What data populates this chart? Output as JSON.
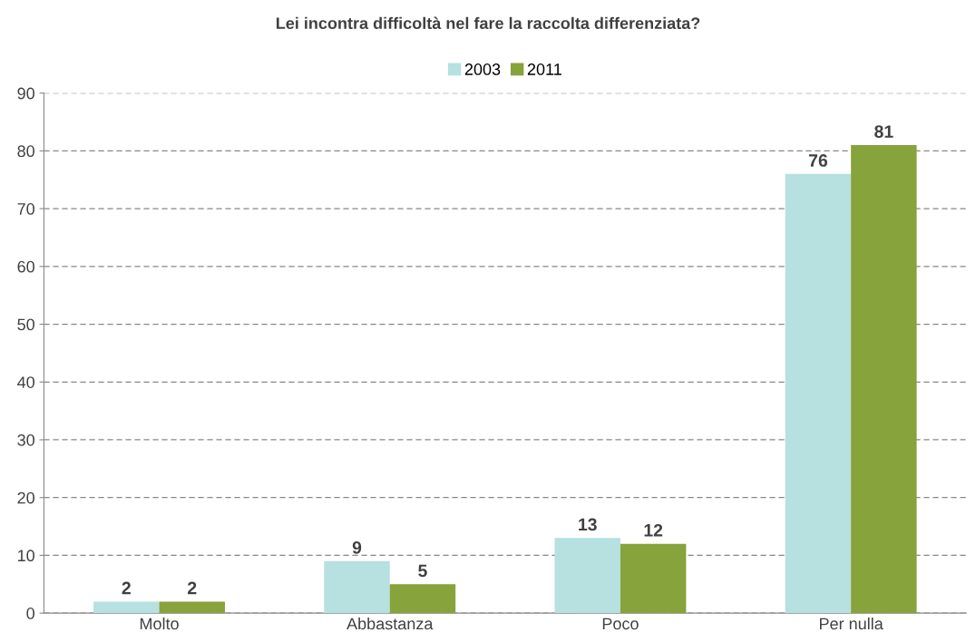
{
  "chart_data": {
    "type": "bar",
    "title": "Lei incontra difficoltà nel fare la raccolta differenziata?",
    "categories": [
      "Molto",
      "Abbastanza",
      "Poco",
      "Per nulla"
    ],
    "series": [
      {
        "name": "2003",
        "color": "#b7e0e0",
        "values": [
          2,
          9,
          13,
          76
        ]
      },
      {
        "name": "2011",
        "color": "#86a33c",
        "values": [
          2,
          5,
          12,
          81
        ]
      }
    ],
    "ylim": [
      0,
      90
    ],
    "yticks": [
      0,
      10,
      20,
      30,
      40,
      50,
      60,
      70,
      80,
      90
    ],
    "grid": "y",
    "legend": "top",
    "data_labels": true
  }
}
